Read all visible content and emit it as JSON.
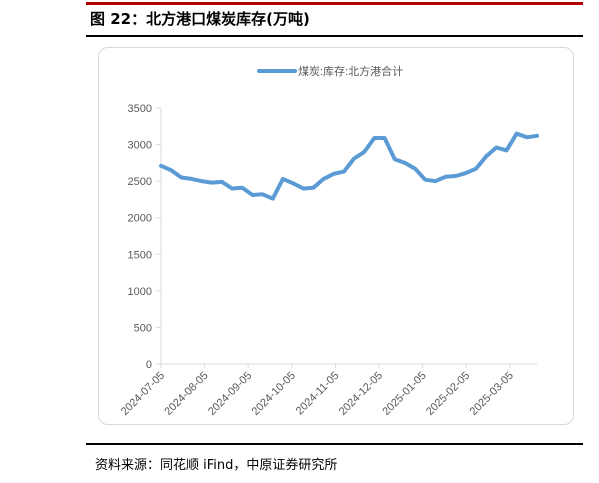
{
  "header": {
    "title": "图 22：北方港口煤炭库存(万吨)"
  },
  "footer": {
    "source": "资料来源：同花顺 iFind，中原证券研究所"
  },
  "colors": {
    "accent_bar": "#b00000",
    "series_line": "#5b9bd5",
    "axis": "#d9d9d9",
    "tick_text": "#595959"
  },
  "chart_data": {
    "type": "line",
    "title": "",
    "xlabel": "",
    "ylabel": "",
    "ylim": [
      0,
      3500
    ],
    "yticks": [
      0,
      500,
      1000,
      1500,
      2000,
      2500,
      3000,
      3500
    ],
    "grid": false,
    "legend_position": "top",
    "x_tick_labels": [
      "2024-07-05",
      "2024-08-05",
      "2024-09-05",
      "2024-10-05",
      "2024-11-05",
      "2024-12-05",
      "2025-01-05",
      "2025-02-05",
      "2025-03-05"
    ],
    "series": [
      {
        "name": "煤炭:库存:北方港合计",
        "values": [
          2710,
          2650,
          2550,
          2530,
          2500,
          2480,
          2490,
          2400,
          2410,
          2310,
          2320,
          2260,
          2530,
          2470,
          2400,
          2410,
          2530,
          2600,
          2630,
          2810,
          2900,
          3090,
          3090,
          2800,
          2750,
          2670,
          2520,
          2500,
          2560,
          2570,
          2610,
          2670,
          2840,
          2960,
          2920,
          3150,
          3100,
          3120
        ]
      }
    ]
  }
}
